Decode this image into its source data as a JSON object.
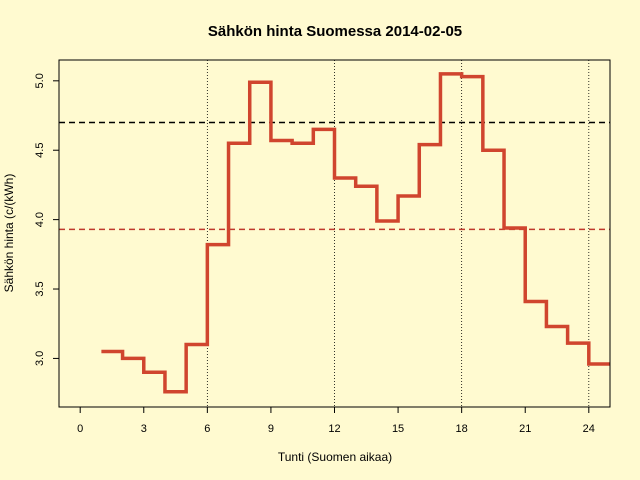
{
  "chart_data": {
    "type": "line",
    "step": true,
    "title": "Sähkön hinta Suomessa 2014-02-05",
    "xlabel": "Tunti (Suomen aikaa)",
    "ylabel": "Sähkön hinta (c/(kWh)",
    "xlim": [
      -1,
      25
    ],
    "ylim": [
      2.65,
      5.15
    ],
    "x_ticks": [
      0,
      3,
      6,
      9,
      12,
      15,
      18,
      21,
      24
    ],
    "x_tick_labels": [
      "0",
      "3",
      "6",
      "9",
      "12",
      "15",
      "18",
      "21",
      "24"
    ],
    "y_ticks": [
      3.0,
      3.5,
      4.0,
      4.5,
      5.0
    ],
    "y_tick_labels": [
      "3.0",
      "3.5",
      "4.0",
      "4.5",
      "5.0"
    ],
    "vertical_gridlines_x": [
      6,
      12,
      18,
      24
    ],
    "reference_lines": [
      {
        "y": 4.7,
        "color": "#000000",
        "style": "dashed"
      },
      {
        "y": 3.93,
        "color": "#c0392b",
        "style": "dashed"
      }
    ],
    "series": [
      {
        "color": "#d0452e",
        "x": [
          1,
          2,
          3,
          4,
          5,
          6,
          7,
          8,
          9,
          10,
          11,
          12,
          13,
          14,
          15,
          16,
          17,
          18,
          19,
          20,
          21,
          22,
          23,
          24
        ],
        "y": [
          3.05,
          3.0,
          2.9,
          2.76,
          3.1,
          3.82,
          4.55,
          4.99,
          4.57,
          4.55,
          4.65,
          4.3,
          4.24,
          3.99,
          4.17,
          4.54,
          5.05,
          5.03,
          4.5,
          3.94,
          3.41,
          3.23,
          3.11,
          2.96
        ]
      }
    ]
  },
  "colors": {
    "background": "#fffad0",
    "series": "#d0452e",
    "axis": "#000000"
  }
}
